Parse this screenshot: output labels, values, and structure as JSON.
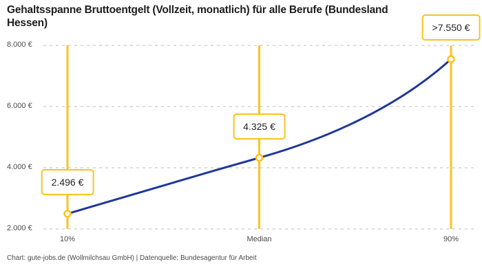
{
  "title_lines": [
    "Gehaltsspanne Bruttoentgelt (Vollzeit, monatlich) für alle Berufe (Bundesland",
    "Hessen)"
  ],
  "footer": "Chart: gute-jobs.de (Wollmilchsau GmbH) | Datenquelle: Bundesagentur für Arbeit",
  "colors": {
    "accent_yellow": "#fec21b",
    "line_blue": "#1e3799",
    "grid": "#cbcbcb",
    "label_text": "#4a4a4a",
    "box_text": "#242424"
  },
  "chart_data": {
    "type": "line",
    "title": "Gehaltsspanne Bruttoentgelt (Vollzeit, monatlich) für alle Berufe (Bundesland Hessen)",
    "categories": [
      "10%",
      "Median",
      "90%"
    ],
    "values": [
      2496,
      4325,
      7550
    ],
    "point_labels": [
      "2.496 €",
      "4.325 €",
      ">7.550 €"
    ],
    "y_tick_values": [
      8000,
      6000,
      4000,
      2000
    ],
    "y_tick_labels": [
      "8.000 €",
      "6.000 €",
      "4.000 €",
      "2.000 €"
    ],
    "ylim": [
      2000,
      8000
    ],
    "xlabel": "",
    "ylabel": "",
    "grid": "horizontal-dashed",
    "legend": "none",
    "marker_lines": "vertical-yellow-at-each-category"
  }
}
